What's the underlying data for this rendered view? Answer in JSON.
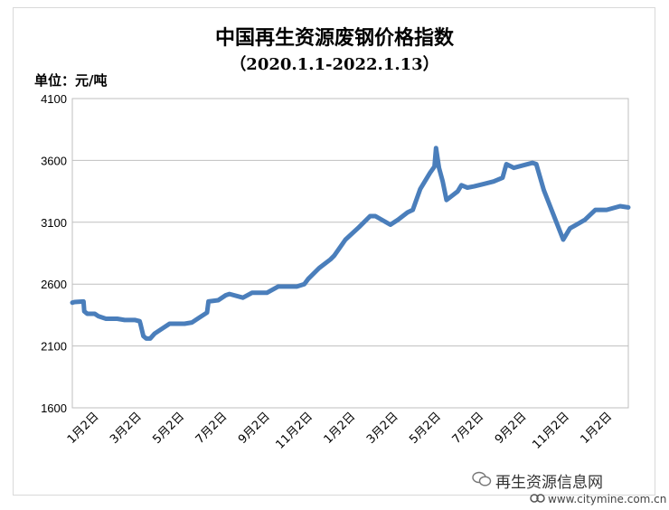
{
  "chart_data": {
    "type": "line",
    "title": "中国再生资源废钢价格指数",
    "subtitle": "（2020.1.1-2022.1.13）",
    "unit_label": "单位：元/吨",
    "ylim": [
      1600,
      4100
    ],
    "yticks": [
      1600,
      2100,
      2600,
      3100,
      3600,
      4100
    ],
    "grid": true,
    "legend": "none",
    "line_color": "#4a7ebb",
    "x_tick_labels": [
      "1月2日",
      "3月2日",
      "5月2日",
      "7月2日",
      "9月2日",
      "11月2日",
      "1月2日",
      "3月2日",
      "5月2日",
      "7月2日",
      "9月2日",
      "11月2日",
      "1月2日"
    ],
    "xlim_days": [
      0,
      743
    ],
    "series": [
      {
        "x_days": [
          0,
          3,
          15,
          16,
          20,
          30,
          35,
          45,
          60,
          70,
          84,
          90,
          91,
          95,
          99,
          104,
          110,
          120,
          130,
          150,
          160,
          170,
          180,
          182,
          195,
          205,
          210,
          228,
          240,
          260,
          275,
          300,
          310,
          315,
          330,
          345,
          350,
          365,
          383,
          398,
          405,
          425,
          435,
          448,
          455,
          465,
          478,
          484,
          486,
          490,
          495,
          500,
          515,
          520,
          528,
          537,
          550,
          563,
          575,
          580,
          590,
          615,
          620,
          630,
          656,
          665,
          685,
          699,
          714,
          732,
          743
        ],
        "values": [
          2450,
          2455,
          2460,
          2380,
          2360,
          2360,
          2340,
          2320,
          2320,
          2310,
          2310,
          2300,
          2280,
          2180,
          2160,
          2160,
          2200,
          2240,
          2280,
          2280,
          2290,
          2330,
          2370,
          2460,
          2470,
          2510,
          2520,
          2490,
          2530,
          2530,
          2580,
          2580,
          2600,
          2640,
          2730,
          2800,
          2830,
          2960,
          3060,
          3150,
          3150,
          3080,
          3120,
          3180,
          3200,
          3370,
          3500,
          3550,
          3700,
          3540,
          3430,
          3280,
          3350,
          3400,
          3380,
          3390,
          3410,
          3430,
          3460,
          3570,
          3540,
          3580,
          3570,
          3360,
          2960,
          3050,
          3120,
          3200,
          3200,
          3230,
          3220
        ]
      }
    ]
  },
  "watermark": {
    "text": "再生资源信息网",
    "site": "www.citymine.com.cn"
  }
}
